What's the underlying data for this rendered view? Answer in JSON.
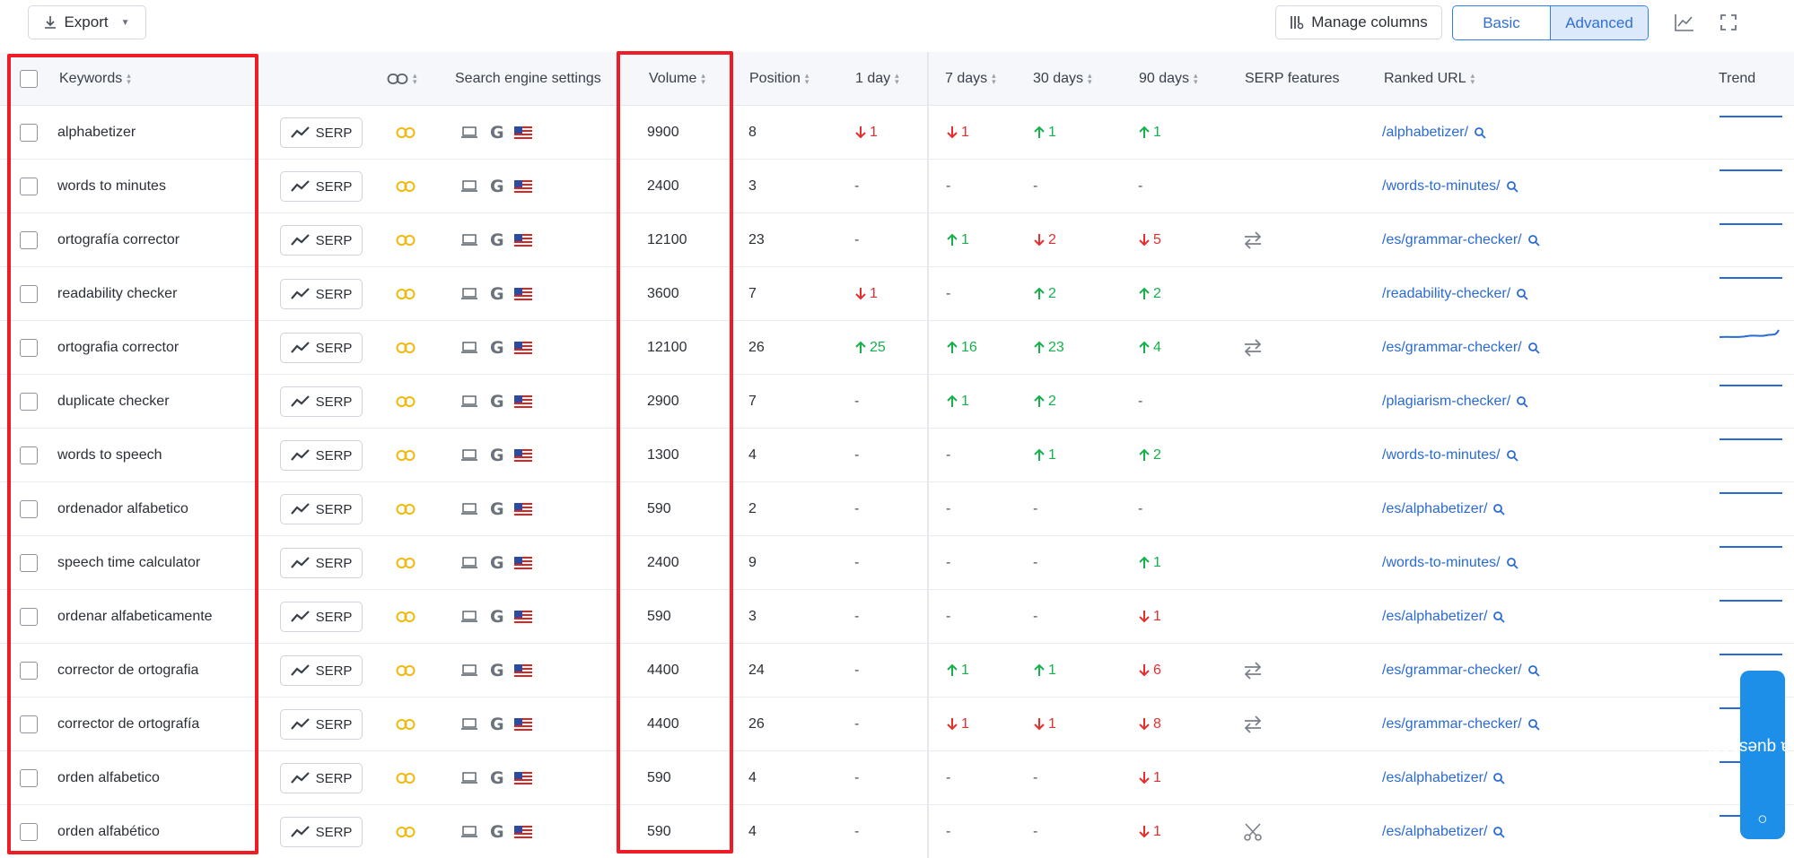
{
  "toolbar": {
    "export_label": "Export",
    "manage_columns_label": "Manage columns",
    "view_modes": [
      "Basic",
      "Advanced"
    ],
    "active_view": "Advanced"
  },
  "columns": {
    "keywords": "Keywords",
    "search_engine": "Search engine settings",
    "volume": "Volume",
    "position": "Position",
    "d1": "1 day",
    "d7": "7 days",
    "d30": "30 days",
    "d90": "90 days",
    "serp_features": "SERP features",
    "ranked_url": "Ranked URL",
    "trend": "Trend"
  },
  "serp_label": "SERP",
  "rows": [
    {
      "keyword": "alphabetizer",
      "volume": "9900",
      "position": "8",
      "d1": {
        "dir": "down",
        "val": "1"
      },
      "d7": {
        "dir": "down",
        "val": "1"
      },
      "d30": {
        "dir": "up",
        "val": "1"
      },
      "d90": {
        "dir": "up",
        "val": "1"
      },
      "feature": "",
      "url": "/alphabetizer/",
      "trend": "flat"
    },
    {
      "keyword": "words to minutes",
      "volume": "2400",
      "position": "3",
      "d1": {
        "dir": "none",
        "val": "-"
      },
      "d7": {
        "dir": "none",
        "val": "-"
      },
      "d30": {
        "dir": "none",
        "val": "-"
      },
      "d90": {
        "dir": "none",
        "val": "-"
      },
      "feature": "",
      "url": "/words-to-minutes/",
      "trend": "flat"
    },
    {
      "keyword": "ortografía corrector",
      "volume": "12100",
      "position": "23",
      "d1": {
        "dir": "none",
        "val": "-"
      },
      "d7": {
        "dir": "up",
        "val": "1"
      },
      "d30": {
        "dir": "down",
        "val": "2"
      },
      "d90": {
        "dir": "down",
        "val": "5"
      },
      "feature": "swap",
      "url": "/es/grammar-checker/",
      "trend": "flat"
    },
    {
      "keyword": "readability checker",
      "volume": "3600",
      "position": "7",
      "d1": {
        "dir": "down",
        "val": "1"
      },
      "d7": {
        "dir": "none",
        "val": "-"
      },
      "d30": {
        "dir": "up",
        "val": "2"
      },
      "d90": {
        "dir": "up",
        "val": "2"
      },
      "feature": "",
      "url": "/readability-checker/",
      "trend": "flat"
    },
    {
      "keyword": "ortografia corrector",
      "volume": "12100",
      "position": "26",
      "d1": {
        "dir": "up",
        "val": "25"
      },
      "d7": {
        "dir": "up",
        "val": "16"
      },
      "d30": {
        "dir": "up",
        "val": "23"
      },
      "d90": {
        "dir": "up",
        "val": "4"
      },
      "feature": "swap",
      "url": "/es/grammar-checker/",
      "trend": "rise"
    },
    {
      "keyword": "duplicate checker",
      "volume": "2900",
      "position": "7",
      "d1": {
        "dir": "none",
        "val": "-"
      },
      "d7": {
        "dir": "up",
        "val": "1"
      },
      "d30": {
        "dir": "up",
        "val": "2"
      },
      "d90": {
        "dir": "none",
        "val": "-"
      },
      "feature": "",
      "url": "/plagiarism-checker/",
      "trend": "flat"
    },
    {
      "keyword": "words to speech",
      "volume": "1300",
      "position": "4",
      "d1": {
        "dir": "none",
        "val": "-"
      },
      "d7": {
        "dir": "none",
        "val": "-"
      },
      "d30": {
        "dir": "up",
        "val": "1"
      },
      "d90": {
        "dir": "up",
        "val": "2"
      },
      "feature": "",
      "url": "/words-to-minutes/",
      "trend": "flat"
    },
    {
      "keyword": "ordenador alfabetico",
      "volume": "590",
      "position": "2",
      "d1": {
        "dir": "none",
        "val": "-"
      },
      "d7": {
        "dir": "none",
        "val": "-"
      },
      "d30": {
        "dir": "none",
        "val": "-"
      },
      "d90": {
        "dir": "none",
        "val": "-"
      },
      "feature": "",
      "url": "/es/alphabetizer/",
      "trend": "flat"
    },
    {
      "keyword": "speech time calculator",
      "volume": "2400",
      "position": "9",
      "d1": {
        "dir": "none",
        "val": "-"
      },
      "d7": {
        "dir": "none",
        "val": "-"
      },
      "d30": {
        "dir": "none",
        "val": "-"
      },
      "d90": {
        "dir": "up",
        "val": "1"
      },
      "feature": "",
      "url": "/words-to-minutes/",
      "trend": "flat"
    },
    {
      "keyword": "ordenar alfabeticamente",
      "volume": "590",
      "position": "3",
      "d1": {
        "dir": "none",
        "val": "-"
      },
      "d7": {
        "dir": "none",
        "val": "-"
      },
      "d30": {
        "dir": "none",
        "val": "-"
      },
      "d90": {
        "dir": "down",
        "val": "1"
      },
      "feature": "",
      "url": "/es/alphabetizer/",
      "trend": "flat"
    },
    {
      "keyword": "corrector de ortografia",
      "volume": "4400",
      "position": "24",
      "d1": {
        "dir": "none",
        "val": "-"
      },
      "d7": {
        "dir": "up",
        "val": "1"
      },
      "d30": {
        "dir": "up",
        "val": "1"
      },
      "d90": {
        "dir": "down",
        "val": "6"
      },
      "feature": "swap",
      "url": "/es/grammar-checker/",
      "trend": "flat"
    },
    {
      "keyword": "corrector de ortografía",
      "volume": "4400",
      "position": "26",
      "d1": {
        "dir": "none",
        "val": "-"
      },
      "d7": {
        "dir": "down",
        "val": "1"
      },
      "d30": {
        "dir": "down",
        "val": "1"
      },
      "d90": {
        "dir": "down",
        "val": "8"
      },
      "feature": "swap",
      "url": "/es/grammar-checker/",
      "trend": "flat"
    },
    {
      "keyword": "orden alfabetico",
      "volume": "590",
      "position": "4",
      "d1": {
        "dir": "none",
        "val": "-"
      },
      "d7": {
        "dir": "none",
        "val": "-"
      },
      "d30": {
        "dir": "none",
        "val": "-"
      },
      "d90": {
        "dir": "down",
        "val": "1"
      },
      "feature": "",
      "url": "/es/alphabetizer/",
      "trend": "flat"
    },
    {
      "keyword": "orden alfabético",
      "volume": "590",
      "position": "4",
      "d1": {
        "dir": "none",
        "val": "-"
      },
      "d7": {
        "dir": "none",
        "val": "-"
      },
      "d30": {
        "dir": "none",
        "val": "-"
      },
      "d90": {
        "dir": "down",
        "val": "1"
      },
      "feature": "scissors",
      "url": "/es/alphabetizer/",
      "trend": "flat"
    }
  ],
  "chat_widget_label": "Got a question?",
  "colors": {
    "up": "#17b04d",
    "down": "#e52f2f",
    "link": "#2a6ad6",
    "highlight": "#ee1c24",
    "accent": "#2f80ed"
  }
}
